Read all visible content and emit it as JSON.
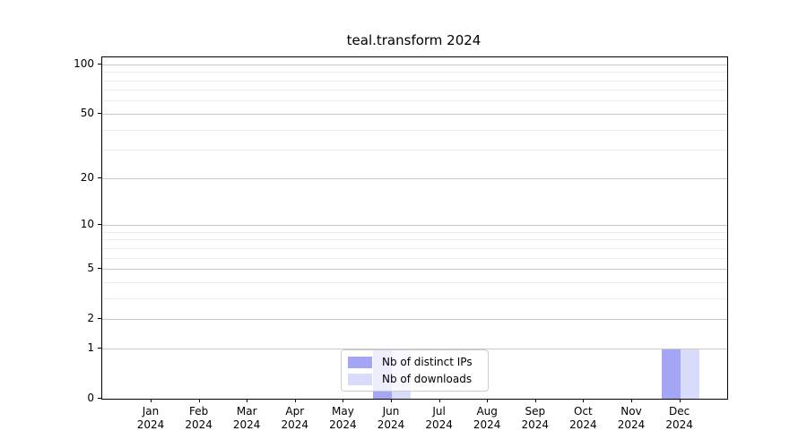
{
  "chart_data": {
    "type": "bar",
    "title": "teal.transform 2024",
    "categories": [
      "Jan 2024",
      "Feb 2024",
      "Mar 2024",
      "Apr 2024",
      "May 2024",
      "Jun 2024",
      "Jul 2024",
      "Aug 2024",
      "Sep 2024",
      "Oct 2024",
      "Nov 2024",
      "Dec 2024"
    ],
    "series": [
      {
        "name": "Nb of distinct IPs",
        "color": "#a4a6f5",
        "values": [
          0,
          0,
          0,
          0,
          0,
          1,
          0,
          0,
          0,
          0,
          0,
          1
        ]
      },
      {
        "name": "Nb of downloads",
        "color": "#d9dbfa",
        "values": [
          0,
          0,
          0,
          0,
          0,
          1,
          0,
          0,
          0,
          0,
          0,
          1
        ]
      }
    ],
    "yscale": "log1p",
    "ylim": [
      0,
      110
    ],
    "yticks": [
      0,
      1,
      2,
      5,
      10,
      20,
      50,
      100
    ],
    "minor_yticks": [
      3,
      4,
      6,
      7,
      8,
      9,
      30,
      40,
      60,
      70,
      80,
      90
    ],
    "grid": true,
    "legend_position": "lower center",
    "colors": {
      "major_grid": "#c9c9c9",
      "minor_grid": "#ededed",
      "spine": "#000000",
      "background": "#ffffff"
    }
  }
}
